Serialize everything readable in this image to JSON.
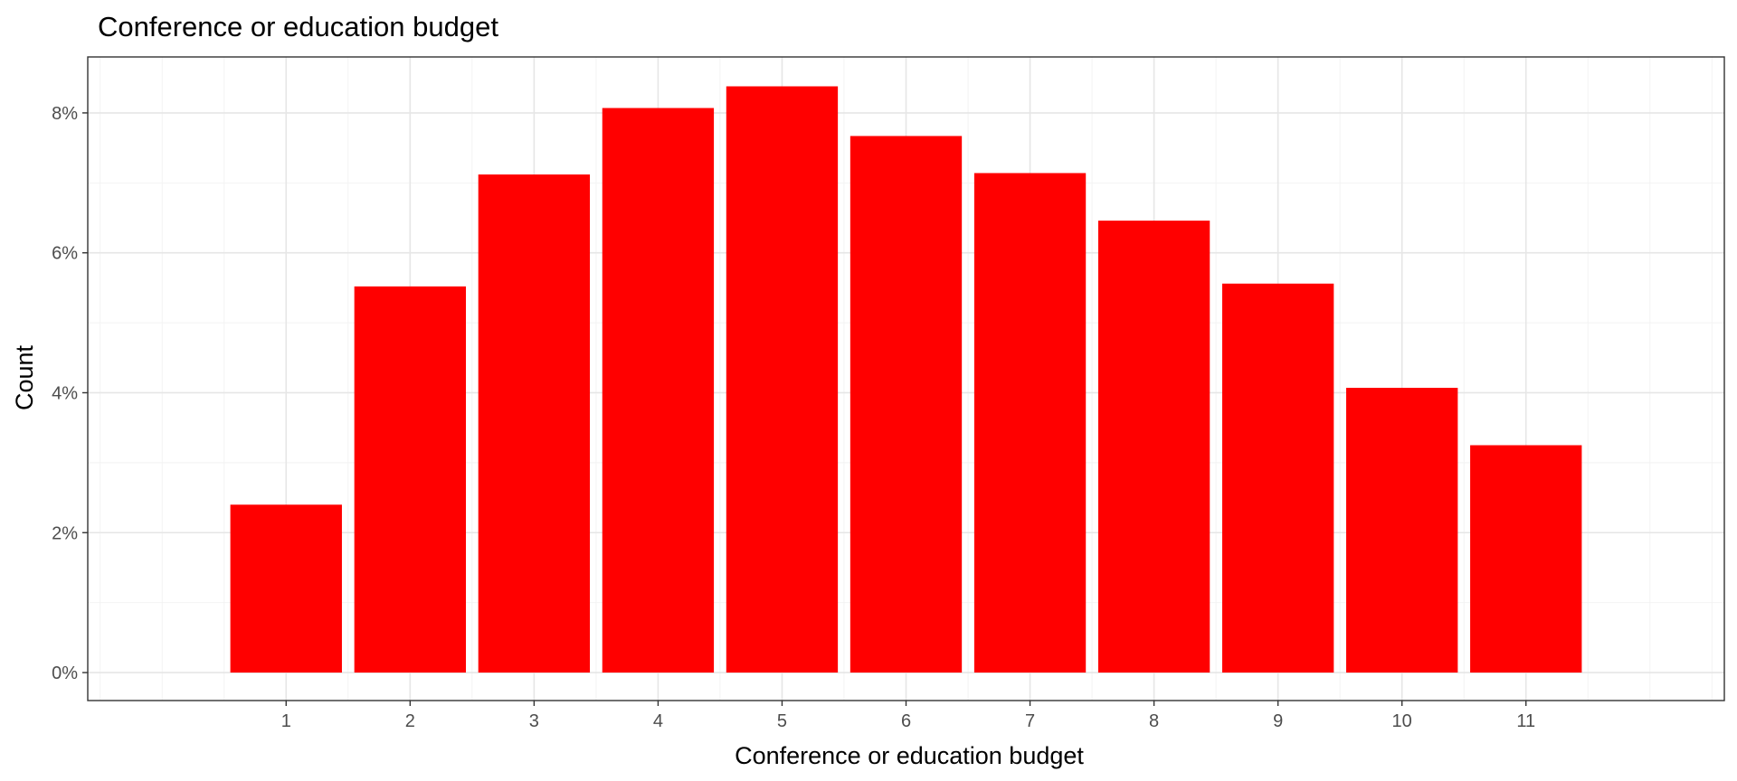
{
  "chart_data": {
    "type": "bar",
    "title": "Conference or education budget",
    "xlabel": "Conference or education budget",
    "ylabel": "Count",
    "categories": [
      "1",
      "2",
      "3",
      "4",
      "5",
      "6",
      "7",
      "8",
      "9",
      "10",
      "11"
    ],
    "values": [
      2.4,
      5.52,
      7.12,
      8.07,
      8.38,
      7.67,
      7.14,
      6.46,
      5.56,
      4.07,
      3.25
    ],
    "value_unit": "%",
    "ylim": [
      -0.4,
      8.8
    ],
    "xlim": [
      -0.6,
      12.6
    ],
    "yticks": [
      0,
      2,
      4,
      6,
      8
    ],
    "ytick_labels": [
      "0%",
      "2%",
      "4%",
      "6%",
      "8%"
    ],
    "bar_color": "#ff0000",
    "grid": true,
    "legend": "none"
  }
}
